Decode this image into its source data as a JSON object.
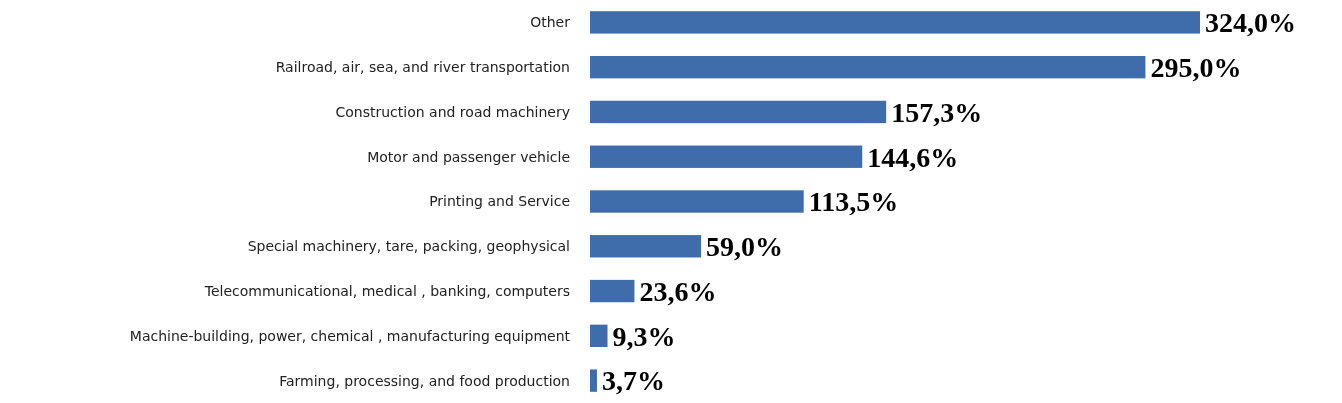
{
  "chart_data": {
    "type": "bar",
    "orientation": "horizontal",
    "categories": [
      "Other",
      "Railroad, air, sea, and river transportation",
      "Construction and road machinery",
      "Motor and passenger vehicle",
      "Printing and Service",
      "Special machinery, tare, packing, geophysical",
      "Telecommunicational, medical , banking, computers",
      "Machine-building, power, chemical , manufacturing equipment",
      "Farming, processing, and food production"
    ],
    "values": [
      324.0,
      295.0,
      157.3,
      144.6,
      113.5,
      59.0,
      23.6,
      9.3,
      3.7
    ],
    "value_labels": [
      "324,0%",
      "295,0%",
      "157,3%",
      "144,6%",
      "113,5%",
      "59,0%",
      "23,6%",
      "9,3%",
      "3,7%"
    ],
    "color": "#3f6cab"
  }
}
